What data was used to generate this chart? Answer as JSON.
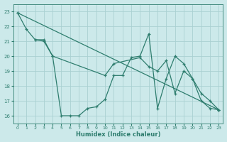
{
  "xlabel": "Humidex (Indice chaleur)",
  "xlim": [
    -0.5,
    23.5
  ],
  "ylim": [
    15.5,
    23.5
  ],
  "yticks": [
    16,
    17,
    18,
    19,
    20,
    21,
    22,
    23
  ],
  "xticks": [
    0,
    1,
    2,
    3,
    4,
    5,
    6,
    7,
    8,
    9,
    10,
    11,
    12,
    13,
    14,
    15,
    16,
    17,
    18,
    19,
    20,
    21,
    22,
    23
  ],
  "bg_color": "#cce9ea",
  "grid_color": "#aad0d2",
  "line_color": "#2e7d6e",
  "lines": [
    {
      "x": [
        0,
        1,
        2,
        3,
        4,
        5,
        6,
        7,
        8,
        9,
        10,
        11,
        12,
        13,
        14,
        15,
        16,
        17,
        18,
        19,
        20,
        21,
        22,
        23
      ],
      "y": [
        22.9,
        21.8,
        21.1,
        21.1,
        20.0,
        16.0,
        16.0,
        16.0,
        16.5,
        16.6,
        17.1,
        18.7,
        18.7,
        19.9,
        20.0,
        21.5,
        16.5,
        18.5,
        20.0,
        19.5,
        18.5,
        17.5,
        17.0,
        16.4
      ]
    },
    {
      "x": [
        2,
        3,
        4,
        10,
        11,
        14,
        15,
        16,
        17,
        18,
        19,
        20,
        21,
        22,
        23
      ],
      "y": [
        21.1,
        21.0,
        20.0,
        18.7,
        19.5,
        19.9,
        19.3,
        19.0,
        19.7,
        17.5,
        19.0,
        18.5,
        17.0,
        16.5,
        16.4
      ]
    },
    {
      "x": [
        0,
        23
      ],
      "y": [
        22.9,
        16.4
      ]
    }
  ]
}
